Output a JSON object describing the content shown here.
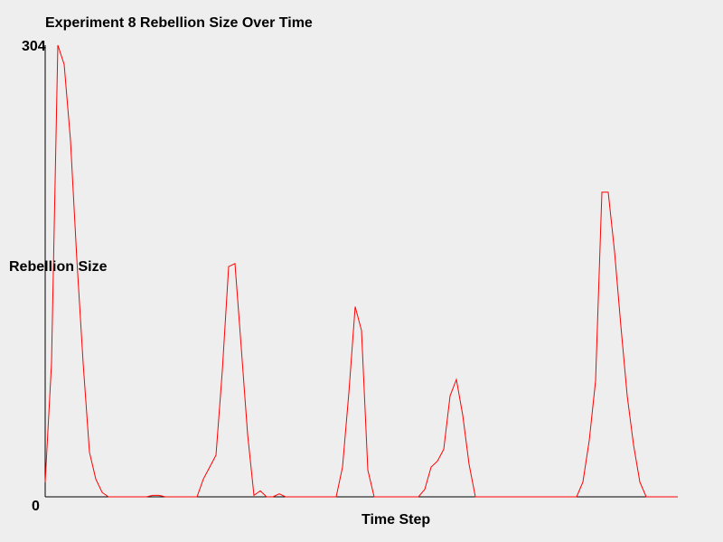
{
  "chart_data": {
    "type": "line",
    "title": "Experiment 8 Rebellion Size Over Time",
    "xlabel": "Time Step",
    "ylabel": "Rebellion Size",
    "ylim": [
      0,
      304
    ],
    "y_tick_labels": [
      "0",
      "304"
    ],
    "grid": false,
    "series": [
      {
        "color": "#ff0000",
        "values": [
          10,
          90,
          304,
          291,
          240,
          160,
          90,
          30,
          12,
          3,
          0,
          0,
          0,
          0,
          0,
          0,
          0,
          1,
          1,
          0,
          0,
          0,
          0,
          0,
          0,
          12,
          20,
          28,
          85,
          155,
          157,
          100,
          42,
          1,
          4,
          0,
          0,
          2,
          0,
          0,
          0,
          0,
          0,
          0,
          0,
          0,
          0,
          20,
          70,
          128,
          112,
          18,
          0,
          0,
          0,
          0,
          0,
          0,
          0,
          0,
          5,
          20,
          24,
          32,
          68,
          79,
          55,
          22,
          0,
          0,
          0,
          0,
          0,
          0,
          0,
          0,
          0,
          0,
          0,
          0,
          0,
          0,
          0,
          0,
          0,
          10,
          38,
          78,
          205,
          205,
          165,
          115,
          68,
          35,
          10,
          0,
          0,
          0,
          0,
          0,
          0
        ]
      }
    ]
  }
}
